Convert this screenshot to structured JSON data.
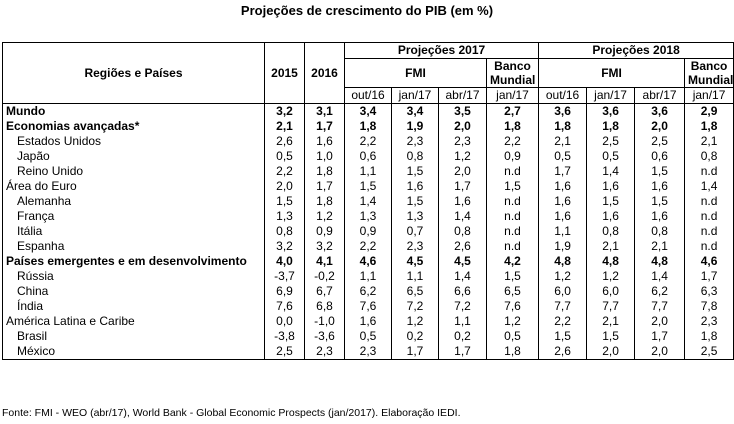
{
  "title": "Projeções de crescimento do PIB (em %)",
  "header": {
    "region_col": "Regiões e Países",
    "year1": "2015",
    "year2": "2016",
    "proj1": "Projeções 2017",
    "proj2": "Projeções 2018",
    "fmi": "FMI",
    "banco_mundial": "Banco Mundial",
    "subcols": [
      "out/16",
      "jan/17",
      "abr/17",
      "jan/17",
      "out/16",
      "jan/17",
      "abr/17",
      "jan/17"
    ]
  },
  "rows": [
    {
      "label": "Mundo",
      "bold": true,
      "indent": false,
      "values": [
        "3,2",
        "3,1",
        "3,4",
        "3,4",
        "3,5",
        "2,7",
        "3,6",
        "3,6",
        "3,6",
        "2,9"
      ]
    },
    {
      "label": "Economias avançadas*",
      "bold": true,
      "indent": false,
      "values": [
        "2,1",
        "1,7",
        "1,8",
        "1,9",
        "2,0",
        "1,8",
        "1,8",
        "1,8",
        "2,0",
        "1,8"
      ]
    },
    {
      "label": "Estados Unidos",
      "bold": false,
      "indent": true,
      "values": [
        "2,6",
        "1,6",
        "2,2",
        "2,3",
        "2,3",
        "2,2",
        "2,1",
        "2,5",
        "2,5",
        "2,1"
      ]
    },
    {
      "label": "Japão",
      "bold": false,
      "indent": true,
      "values": [
        "0,5",
        "1,0",
        "0,6",
        "0,8",
        "1,2",
        "0,9",
        "0,5",
        "0,5",
        "0,6",
        "0,8"
      ]
    },
    {
      "label": "Reino Unido",
      "bold": false,
      "indent": true,
      "values": [
        "2,2",
        "1,8",
        "1,1",
        "1,5",
        "2,0",
        "n.d",
        "1,7",
        "1,4",
        "1,5",
        "n.d"
      ]
    },
    {
      "label": "Área do Euro",
      "bold": false,
      "indent": false,
      "values": [
        "2,0",
        "1,7",
        "1,5",
        "1,6",
        "1,7",
        "1,5",
        "1,6",
        "1,6",
        "1,6",
        "1,4"
      ]
    },
    {
      "label": "Alemanha",
      "bold": false,
      "indent": true,
      "values": [
        "1,5",
        "1,8",
        "1,4",
        "1,5",
        "1,6",
        "n.d",
        "1,6",
        "1,5",
        "1,5",
        "n.d"
      ]
    },
    {
      "label": "França",
      "bold": false,
      "indent": true,
      "values": [
        "1,3",
        "1,2",
        "1,3",
        "1,3",
        "1,4",
        "n.d",
        "1,6",
        "1,6",
        "1,6",
        "n.d"
      ]
    },
    {
      "label": "Itália",
      "bold": false,
      "indent": true,
      "values": [
        "0,8",
        "0,9",
        "0,9",
        "0,7",
        "0,8",
        "n.d",
        "1,1",
        "0,8",
        "0,8",
        "n.d"
      ]
    },
    {
      "label": "Espanha",
      "bold": false,
      "indent": true,
      "values": [
        "3,2",
        "3,2",
        "2,2",
        "2,3",
        "2,6",
        "n.d",
        "1,9",
        "2,1",
        "2,1",
        "n.d"
      ]
    },
    {
      "label": "Países emergentes e em desenvolvimento",
      "bold": true,
      "indent": false,
      "values": [
        "4,0",
        "4,1",
        "4,6",
        "4,5",
        "4,5",
        "4,2",
        "4,8",
        "4,8",
        "4,8",
        "4,6"
      ]
    },
    {
      "label": "Rússia",
      "bold": false,
      "indent": true,
      "values": [
        "-3,7",
        "-0,2",
        "1,1",
        "1,1",
        "1,4",
        "1,5",
        "1,2",
        "1,2",
        "1,4",
        "1,7"
      ]
    },
    {
      "label": "China",
      "bold": false,
      "indent": true,
      "values": [
        "6,9",
        "6,7",
        "6,2",
        "6,5",
        "6,6",
        "6,5",
        "6,0",
        "6,0",
        "6,2",
        "6,3"
      ]
    },
    {
      "label": "Índia",
      "bold": false,
      "indent": true,
      "values": [
        "7,6",
        "6,8",
        "7,6",
        "7,2",
        "7,2",
        "7,6",
        "7,7",
        "7,7",
        "7,7",
        "7,8"
      ]
    },
    {
      "label": "América Latina e Caribe",
      "bold": false,
      "indent": false,
      "values": [
        "0,0",
        "-1,0",
        "1,6",
        "1,2",
        "1,1",
        "1,2",
        "2,2",
        "2,1",
        "2,0",
        "2,3"
      ]
    },
    {
      "label": "Brasil",
      "bold": false,
      "indent": true,
      "values": [
        "-3,8",
        "-3,6",
        "0,5",
        "0,2",
        "0,2",
        "0,5",
        "1,5",
        "1,5",
        "1,7",
        "1,8"
      ]
    },
    {
      "label": "México",
      "bold": false,
      "indent": true,
      "values": [
        "2,5",
        "2,3",
        "2,3",
        "1,7",
        "1,7",
        "1,8",
        "2,6",
        "2,0",
        "2,0",
        "2,5"
      ]
    }
  ],
  "source": "Fonte: FMI - WEO (abr/17), World Bank - Global Economic Prospects (jan/2017). Elaboração IEDI."
}
